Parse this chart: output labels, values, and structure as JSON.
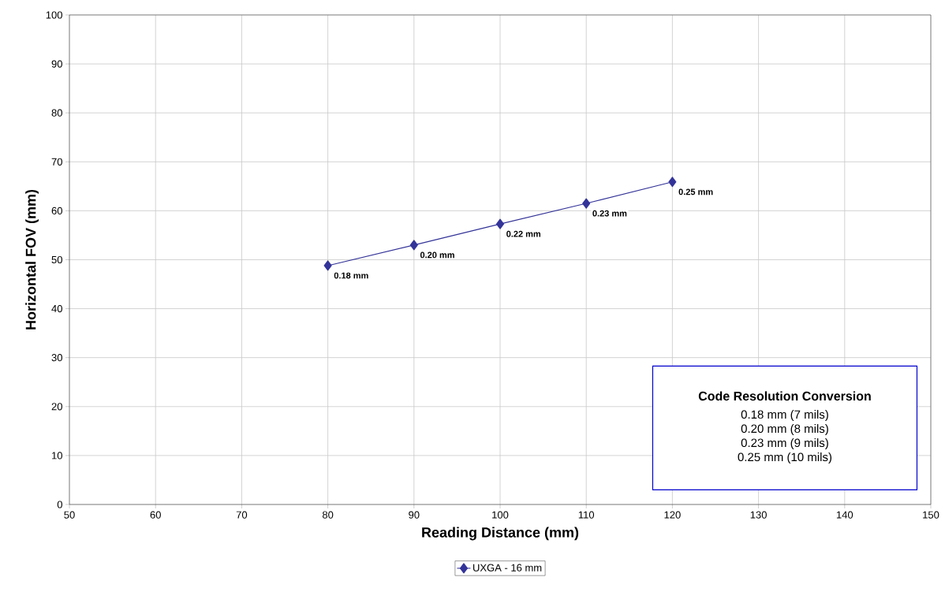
{
  "chart_data": {
    "type": "line",
    "xlabel": "Reading Distance (mm)",
    "ylabel": "Horizontal FOV (mm)",
    "x": [
      80,
      90,
      100,
      110,
      120
    ],
    "series": [
      {
        "name": "UXGA - 16 mm",
        "color": "#333399",
        "values": [
          48.8,
          53.0,
          57.3,
          61.5,
          65.9
        ]
      }
    ],
    "xlim": [
      50,
      150
    ],
    "xticks": [
      50,
      60,
      70,
      80,
      90,
      100,
      110,
      120,
      130,
      140,
      150
    ],
    "ylim": [
      0,
      100
    ],
    "yticks": [
      0,
      10,
      20,
      30,
      40,
      50,
      60,
      70,
      80,
      90,
      100
    ],
    "grid": true,
    "legend": "bottom",
    "marker": "diamond",
    "line_style": "solid",
    "annotations": [
      {
        "text": "0.18 mm",
        "x": 80,
        "y": 48.8
      },
      {
        "text": "0.20 mm",
        "x": 90,
        "y": 53.0
      },
      {
        "text": "0.22 mm",
        "x": 100,
        "y": 57.3
      },
      {
        "text": "0.23 mm",
        "x": 110,
        "y": 61.5
      },
      {
        "text": "0.25 mm",
        "x": 120,
        "y": 65.9
      },
      "Code Resolution Conversion",
      "0.18 mm (7 mils)",
      "0.20 mm (8 mils)",
      "0.23 mm (9 mils)",
      "0.25 mm (10 mils)"
    ]
  }
}
